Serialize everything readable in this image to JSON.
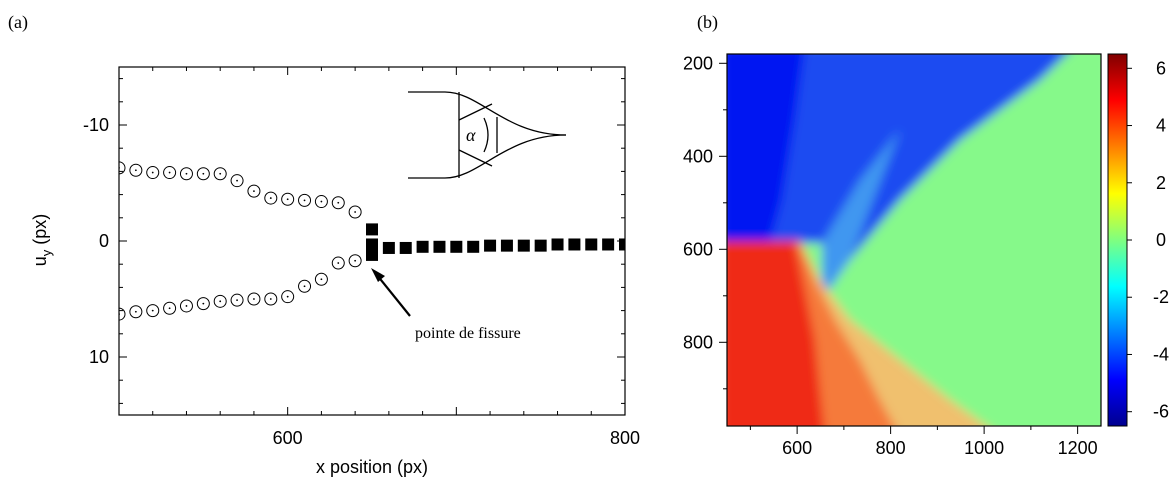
{
  "panels": {
    "a_label": "(a)",
    "b_label": "(b)"
  },
  "chart_data": [
    {
      "type": "scatter",
      "panel": "(a)",
      "xlabel": "x position (px)",
      "ylabel_main": "u",
      "ylabel_sub": "y",
      "ylabel_unit": " (px)",
      "xlim": [
        500,
        800
      ],
      "ylim": [
        15,
        -15
      ],
      "y_inverted": true,
      "xticks": [
        600,
        800
      ],
      "yticks": [
        -10,
        0,
        10
      ],
      "annotation": "pointe de fissure",
      "inset_symbol": "α",
      "series": [
        {
          "marker": "open-circle",
          "x": [
            500,
            510,
            520,
            530,
            540,
            550,
            560,
            570,
            580,
            590,
            600,
            610,
            620,
            630,
            640
          ],
          "y": [
            -6.3,
            -6.1,
            -5.9,
            -5.9,
            -5.8,
            -5.8,
            -5.8,
            -5.2,
            -4.3,
            -3.7,
            -3.6,
            -3.5,
            -3.4,
            -3.3,
            -2.5
          ]
        },
        {
          "marker": "open-circle",
          "x": [
            500,
            510,
            520,
            530,
            540,
            550,
            560,
            570,
            580,
            590,
            600,
            610,
            620,
            630,
            640
          ],
          "y": [
            6.3,
            6.1,
            6.0,
            5.8,
            5.6,
            5.4,
            5.2,
            5.1,
            5.0,
            5.0,
            4.8,
            3.9,
            3.3,
            1.9,
            1.7
          ]
        },
        {
          "marker": "filled-square",
          "x": [
            650,
            650,
            650,
            650,
            660,
            670,
            680,
            690,
            700,
            710,
            720,
            730,
            740,
            750,
            760,
            770,
            780,
            790,
            800
          ],
          "y": [
            -1.0,
            0.3,
            0.8,
            1.2,
            0.6,
            0.6,
            0.5,
            0.5,
            0.5,
            0.5,
            0.4,
            0.4,
            0.4,
            0.4,
            0.3,
            0.3,
            0.3,
            0.3,
            0.3
          ]
        }
      ]
    },
    {
      "type": "heatmap",
      "panel": "(b)",
      "xlim": [
        450,
        1250
      ],
      "ylim": [
        180,
        980
      ],
      "y_inverted": true,
      "xticks": [
        600,
        800,
        1000,
        1200
      ],
      "yticks": [
        200,
        400,
        600,
        800
      ],
      "colorbar": {
        "min": -6.5,
        "max": 6.5,
        "ticks": [
          -6,
          -4,
          -2,
          0,
          2,
          4,
          6
        ],
        "colormap": "jet"
      },
      "regions": [
        {
          "name": "upper-left",
          "value": -6
        },
        {
          "name": "right",
          "value": -1
        },
        {
          "name": "lower-left",
          "value": 6
        }
      ]
    }
  ]
}
